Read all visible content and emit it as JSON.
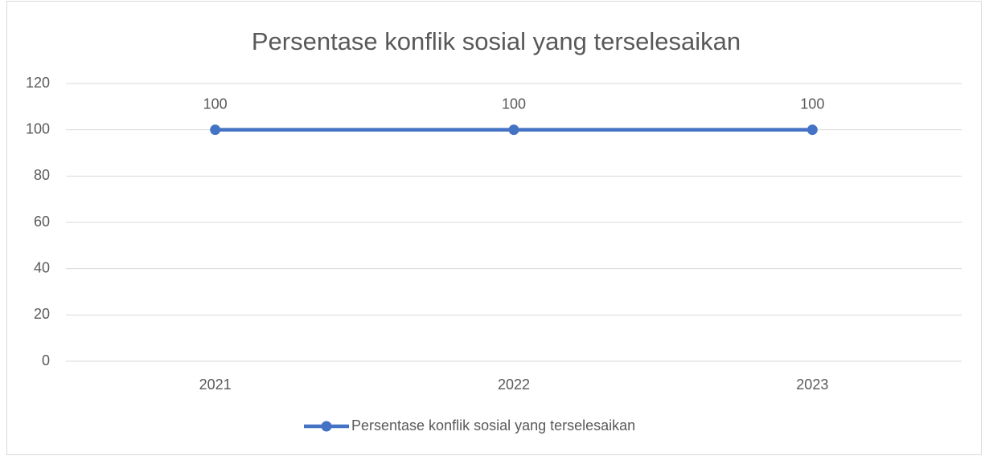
{
  "chart_data": {
    "type": "line",
    "title": "Persentase konflik sosial yang terselesaikan",
    "categories": [
      "2021",
      "2022",
      "2023"
    ],
    "series": [
      {
        "name": "Persentase konflik sosial yang terselesaikan",
        "color": "#4472c4",
        "values": [
          100,
          100,
          100
        ]
      }
    ],
    "ylim": [
      0,
      120
    ],
    "yticks": [
      0,
      20,
      40,
      60,
      80,
      100,
      120
    ],
    "grid": true,
    "legend": "bottom",
    "data_labels": true
  }
}
